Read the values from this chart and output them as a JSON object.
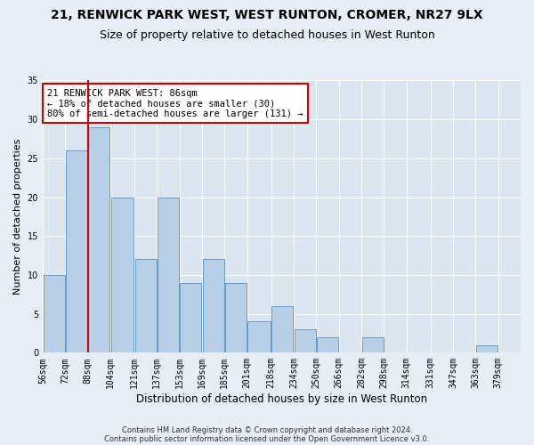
{
  "title1": "21, RENWICK PARK WEST, WEST RUNTON, CROMER, NR27 9LX",
  "title2": "Size of property relative to detached houses in West Runton",
  "xlabel": "Distribution of detached houses by size in West Runton",
  "ylabel": "Number of detached properties",
  "footnote1": "Contains HM Land Registry data © Crown copyright and database right 2024.",
  "footnote2": "Contains public sector information licensed under the Open Government Licence v3.0.",
  "bar_edges": [
    56,
    72,
    88,
    104,
    121,
    137,
    153,
    169,
    185,
    201,
    218,
    234,
    250,
    266,
    282,
    298,
    314,
    331,
    347,
    363,
    379
  ],
  "bar_labels": [
    "56sqm",
    "72sqm",
    "88sqm",
    "104sqm",
    "121sqm",
    "137sqm",
    "153sqm",
    "169sqm",
    "185sqm",
    "201sqm",
    "218sqm",
    "234sqm",
    "250sqm",
    "266sqm",
    "282sqm",
    "298sqm",
    "314sqm",
    "331sqm",
    "347sqm",
    "363sqm",
    "379sqm"
  ],
  "bar_heights": [
    10,
    26,
    29,
    20,
    12,
    20,
    9,
    12,
    9,
    4,
    6,
    3,
    2,
    0,
    2,
    0,
    0,
    0,
    0,
    1
  ],
  "bar_color": "#b8cfe8",
  "bar_edgecolor": "#6699cc",
  "vline_x": 88,
  "vline_color": "#cc0000",
  "ylim": [
    0,
    35
  ],
  "yticks": [
    0,
    5,
    10,
    15,
    20,
    25,
    30,
    35
  ],
  "annotation_title": "21 RENWICK PARK WEST: 86sqm",
  "annotation_line1": "← 18% of detached houses are smaller (30)",
  "annotation_line2": "80% of semi-detached houses are larger (131) →",
  "annotation_box_color": "#ffffff",
  "annotation_box_edgecolor": "#cc0000",
  "bg_color": "#e8eef5",
  "plot_bg_color": "#dce6f0",
  "grid_color": "#ffffff",
  "title1_fontsize": 10,
  "title2_fontsize": 9,
  "xlabel_fontsize": 8.5,
  "ylabel_fontsize": 8,
  "tick_fontsize": 7,
  "annot_fontsize": 7.5,
  "footnote_fontsize": 6
}
